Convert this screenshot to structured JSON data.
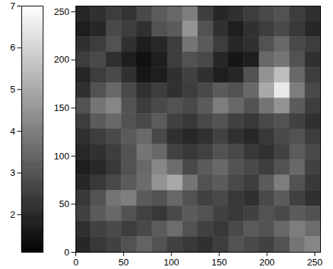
{
  "chart_data": {
    "type": "heatmap",
    "xlim": [
      0,
      256
    ],
    "ylim": [
      0,
      256
    ],
    "xticks": [
      0,
      50,
      100,
      150,
      200,
      250
    ],
    "yticks": [
      0,
      50,
      100,
      150,
      200,
      250
    ],
    "cells_rows_top_to_bottom": [
      [
        2.0,
        2.2,
        2.5,
        2.3,
        2.8,
        3.2,
        3.5,
        4.0,
        2.5,
        2.0,
        2.2,
        2.5,
        2.8,
        3.0,
        2.5,
        2.2
      ],
      [
        1.8,
        2.0,
        2.8,
        2.5,
        2.2,
        3.0,
        3.2,
        4.5,
        3.0,
        2.2,
        1.8,
        2.2,
        2.5,
        2.8,
        2.4,
        2.0
      ],
      [
        2.2,
        2.5,
        3.0,
        2.2,
        1.8,
        2.0,
        2.5,
        3.8,
        3.2,
        2.5,
        2.0,
        2.2,
        3.0,
        3.5,
        2.8,
        2.5
      ],
      [
        2.5,
        2.8,
        2.2,
        1.8,
        1.5,
        1.8,
        2.5,
        3.0,
        2.8,
        2.0,
        1.6,
        1.8,
        3.5,
        3.8,
        3.0,
        2.2
      ],
      [
        2.0,
        2.5,
        2.8,
        2.2,
        1.6,
        1.8,
        2.2,
        2.6,
        2.2,
        1.8,
        2.0,
        3.0,
        4.5,
        5.5,
        3.5,
        2.5
      ],
      [
        2.2,
        3.0,
        3.5,
        2.8,
        2.2,
        2.5,
        2.2,
        2.5,
        2.8,
        3.2,
        3.0,
        3.5,
        5.0,
        6.5,
        4.0,
        2.8
      ],
      [
        3.0,
        3.8,
        4.2,
        3.0,
        2.5,
        2.8,
        3.0,
        2.8,
        3.2,
        4.0,
        3.5,
        3.0,
        3.8,
        4.5,
        3.2,
        2.5
      ],
      [
        2.5,
        3.2,
        3.5,
        3.0,
        2.8,
        3.2,
        2.6,
        2.4,
        2.8,
        3.0,
        2.6,
        2.4,
        2.8,
        3.0,
        2.6,
        2.2
      ],
      [
        2.2,
        2.5,
        2.8,
        3.2,
        3.5,
        2.8,
        2.2,
        2.0,
        2.2,
        2.6,
        2.2,
        2.0,
        2.4,
        2.8,
        3.0,
        2.5
      ],
      [
        2.0,
        2.2,
        2.5,
        3.0,
        3.8,
        3.5,
        2.6,
        2.4,
        2.6,
        3.0,
        2.8,
        2.4,
        2.2,
        2.6,
        3.2,
        2.8
      ],
      [
        1.8,
        2.0,
        2.4,
        3.0,
        3.5,
        4.2,
        3.6,
        2.8,
        3.2,
        3.5,
        3.0,
        2.8,
        2.5,
        3.0,
        3.5,
        2.6
      ],
      [
        2.0,
        2.4,
        2.8,
        3.2,
        3.6,
        4.5,
        5.0,
        3.8,
        3.0,
        3.2,
        2.8,
        2.5,
        3.2,
        4.0,
        3.0,
        2.4
      ],
      [
        2.4,
        3.0,
        3.8,
        4.0,
        3.2,
        3.0,
        3.5,
        3.0,
        2.6,
        2.8,
        2.4,
        2.2,
        2.8,
        3.2,
        2.6,
        2.2
      ],
      [
        2.6,
        3.2,
        3.5,
        3.0,
        2.6,
        2.4,
        2.8,
        3.2,
        3.0,
        2.6,
        2.4,
        2.6,
        3.0,
        2.8,
        3.2,
        3.0
      ],
      [
        2.2,
        2.6,
        2.8,
        2.5,
        2.8,
        3.2,
        3.6,
        3.0,
        2.6,
        2.4,
        2.8,
        3.2,
        3.0,
        3.5,
        4.0,
        3.6
      ],
      [
        2.0,
        2.4,
        2.6,
        3.0,
        3.4,
        3.0,
        2.6,
        2.4,
        2.2,
        2.5,
        3.0,
        2.8,
        2.6,
        3.0,
        3.8,
        4.2
      ]
    ],
    "colorbar_range": [
      1.1,
      7
    ],
    "colorbar_ticks": [
      2,
      3,
      4,
      5,
      6,
      7
    ]
  }
}
